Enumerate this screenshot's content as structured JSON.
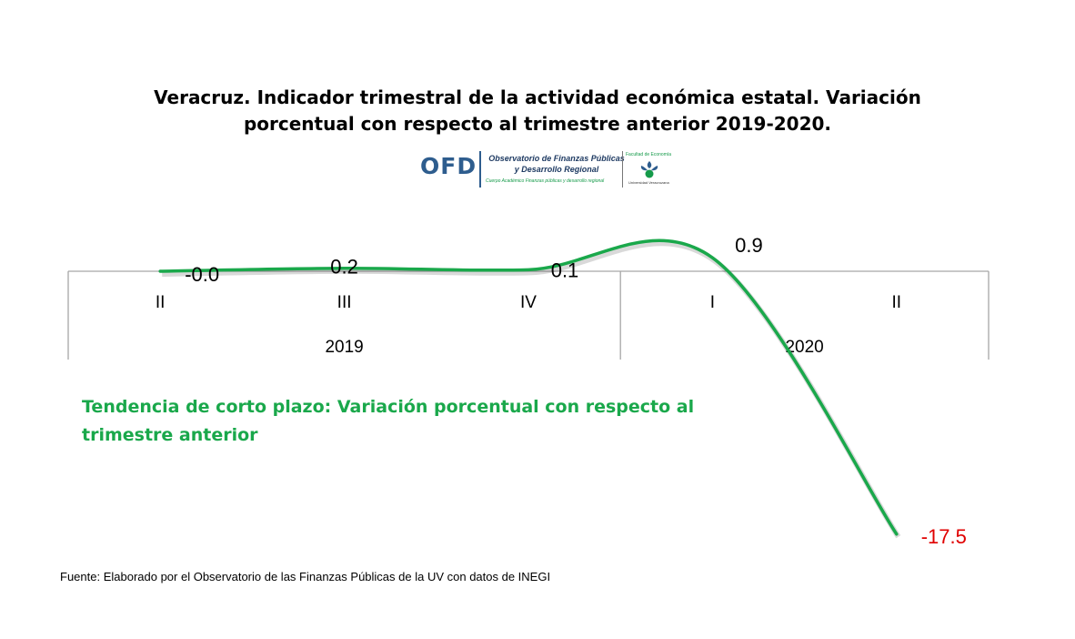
{
  "title_line1": "Veracruz. Indicador trimestral de la actividad económica estatal. Variación",
  "title_line2": "porcentual con respecto al trimestre anterior 2019-2020.",
  "logo": {
    "acronym": "OFD",
    "name": "Observatorio de Finanzas Públicas y Desarrollo Regional",
    "subtitle": "Cuerpo Académico Finanzas públicas y desarrollo regional",
    "faculty": "Facultad de Economía",
    "university": "Universidad Veracruzana"
  },
  "note": "Tendencia de corto plazo:  Variación porcentual con respecto al trimestre anterior",
  "source": "Fuente: Elaborado por el Observatorio de las Finanzas Públicas de la UV con datos de INEGI",
  "chart_data": {
    "type": "line",
    "categories": [
      "II",
      "III",
      "IV",
      "I",
      "II"
    ],
    "groups": [
      {
        "label": "2019",
        "span": 3
      },
      {
        "label": "2020",
        "span": 2
      }
    ],
    "values": [
      -0.0,
      0.2,
      0.1,
      0.9,
      -17.5
    ],
    "data_labels": [
      "-0.0",
      "0.2",
      "0.1",
      "0.9",
      "-17.5"
    ],
    "smooth": true,
    "line_color": "#1aa84b",
    "negative_label_color": "#e00000",
    "positive_label_color": "#000000",
    "axis_color": "#a6a6a6",
    "grid": false,
    "legend": "none"
  }
}
